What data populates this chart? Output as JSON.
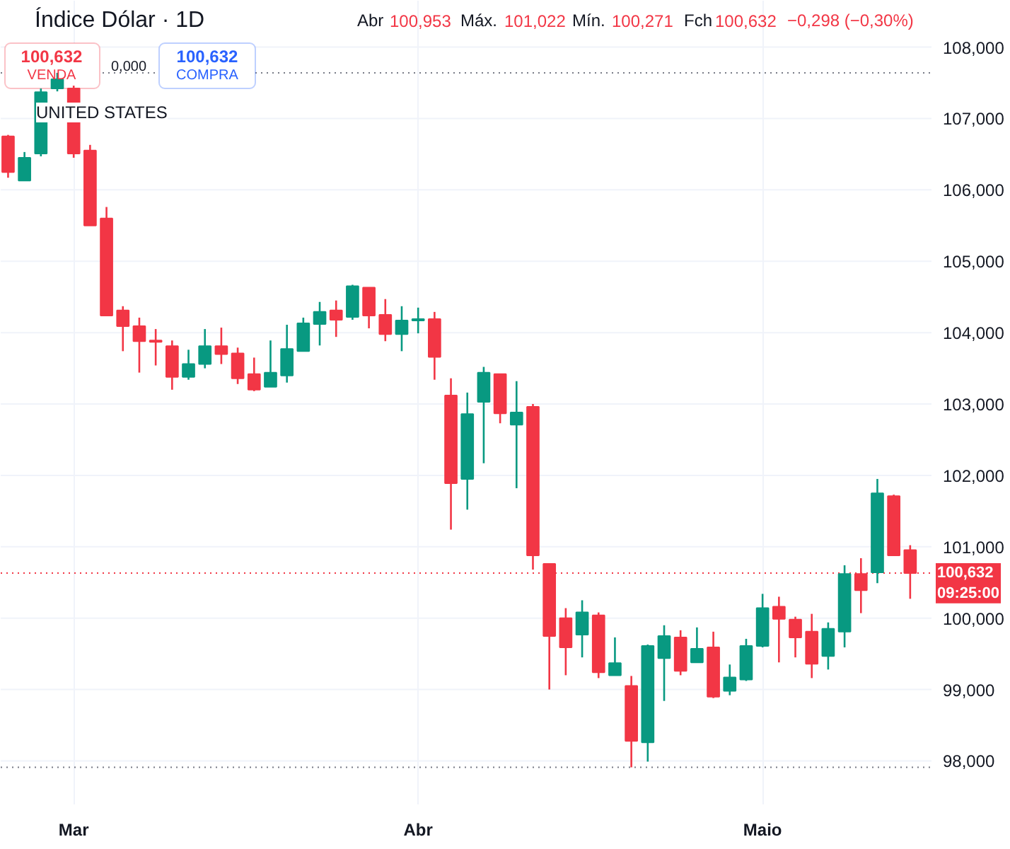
{
  "chart_data": {
    "type": "candlestick",
    "title": "Índice Dólar · 1D",
    "categories": [
      null,
      null,
      null,
      null,
      "Mar",
      null,
      null,
      null,
      null,
      null,
      null,
      null,
      null,
      null,
      null,
      null,
      null,
      null,
      null,
      null,
      null,
      null,
      null,
      null,
      null,
      "Abr",
      null,
      null,
      null,
      null,
      null,
      null,
      null,
      null,
      null,
      null,
      null,
      null,
      null,
      null,
      null,
      null,
      null,
      null,
      null,
      null,
      "Maio",
      null,
      null,
      null,
      null,
      null,
      null,
      null,
      null,
      null
    ],
    "ohlc": [
      [
        106.75,
        106.77,
        106.17,
        106.25
      ],
      [
        106.13,
        106.53,
        106.13,
        106.45
      ],
      [
        106.51,
        107.42,
        106.47,
        107.37
      ],
      [
        107.42,
        107.64,
        107.38,
        107.55
      ],
      [
        107.42,
        107.46,
        106.45,
        106.51
      ],
      [
        106.55,
        106.63,
        105.5,
        105.5
      ],
      [
        105.6,
        105.76,
        104.24,
        104.24
      ],
      [
        104.31,
        104.37,
        103.74,
        104.09
      ],
      [
        104.09,
        104.21,
        103.44,
        103.88
      ],
      [
        103.89,
        104.05,
        103.54,
        103.87
      ],
      [
        103.81,
        103.89,
        103.2,
        103.38
      ],
      [
        103.38,
        103.76,
        103.34,
        103.56
      ],
      [
        103.56,
        104.05,
        103.5,
        103.81
      ],
      [
        103.81,
        104.07,
        103.56,
        103.7
      ],
      [
        103.71,
        103.79,
        103.28,
        103.36
      ],
      [
        103.42,
        103.65,
        103.18,
        103.2
      ],
      [
        103.24,
        103.89,
        103.24,
        103.44
      ],
      [
        103.4,
        104.11,
        103.3,
        103.77
      ],
      [
        103.74,
        104.21,
        103.74,
        104.13
      ],
      [
        104.12,
        104.43,
        103.82,
        104.29
      ],
      [
        104.31,
        104.45,
        103.94,
        104.18
      ],
      [
        104.22,
        104.67,
        104.18,
        104.65
      ],
      [
        104.63,
        104.63,
        104.06,
        104.24
      ],
      [
        104.25,
        104.47,
        103.88,
        103.98
      ],
      [
        103.98,
        104.37,
        103.74,
        104.17
      ],
      [
        104.17,
        104.35,
        103.99,
        104.19
      ],
      [
        104.19,
        104.29,
        103.34,
        103.66
      ],
      [
        103.12,
        103.36,
        101.24,
        101.89
      ],
      [
        101.95,
        103.16,
        101.52,
        102.86
      ],
      [
        103.03,
        103.52,
        102.17,
        103.44
      ],
      [
        103.42,
        103.42,
        102.73,
        102.87
      ],
      [
        102.71,
        103.32,
        101.82,
        102.88
      ],
      [
        102.96,
        103.0,
        100.68,
        100.88
      ],
      [
        100.76,
        100.76,
        99.0,
        99.75
      ],
      [
        100.0,
        100.14,
        99.2,
        99.59
      ],
      [
        99.77,
        100.25,
        99.45,
        100.08
      ],
      [
        100.04,
        100.08,
        99.16,
        99.24
      ],
      [
        99.2,
        99.73,
        99.2,
        99.37
      ],
      [
        99.05,
        99.19,
        97.91,
        98.28
      ],
      [
        98.26,
        99.63,
        97.99,
        99.61
      ],
      [
        99.44,
        99.9,
        98.84,
        99.75
      ],
      [
        99.73,
        99.83,
        99.2,
        99.26
      ],
      [
        99.38,
        99.87,
        99.38,
        99.57
      ],
      [
        99.59,
        99.81,
        98.88,
        98.9
      ],
      [
        98.98,
        99.35,
        98.92,
        99.17
      ],
      [
        99.14,
        99.71,
        99.12,
        99.61
      ],
      [
        99.61,
        100.34,
        99.59,
        100.14
      ],
      [
        100.16,
        100.3,
        99.38,
        99.99
      ],
      [
        99.98,
        100.02,
        99.45,
        99.73
      ],
      [
        99.81,
        100.06,
        99.16,
        99.36
      ],
      [
        99.47,
        99.94,
        99.28,
        99.85
      ],
      [
        99.81,
        100.74,
        99.59,
        100.62
      ],
      [
        100.62,
        100.84,
        100.07,
        100.39
      ],
      [
        100.64,
        101.95,
        100.49,
        101.75
      ],
      [
        101.71,
        101.73,
        100.88,
        100.88
      ],
      [
        100.953,
        101.022,
        100.271,
        100.632
      ]
    ],
    "colors": [
      "#f23645",
      "#089981",
      "#089981",
      "#089981",
      "#f23645",
      "#f23645",
      "#f23645",
      "#f23645",
      "#f23645",
      "#f23645",
      "#f23645",
      "#089981",
      "#089981",
      "#f23645",
      "#f23645",
      "#f23645",
      "#089981",
      "#089981",
      "#089981",
      "#089981",
      "#f23645",
      "#089981",
      "#f23645",
      "#f23645",
      "#089981",
      "#089981",
      "#f23645",
      "#f23645",
      "#089981",
      "#089981",
      "#f23645",
      "#089981",
      "#f23645",
      "#f23645",
      "#f23645",
      "#089981",
      "#f23645",
      "#089981",
      "#f23645",
      "#089981",
      "#089981",
      "#f23645",
      "#089981",
      "#f23645",
      "#089981",
      "#089981",
      "#089981",
      "#f23645",
      "#f23645",
      "#f23645",
      "#089981",
      "#089981",
      "#f23645",
      "#089981",
      "#f23645",
      "#f23645"
    ],
    "ylim": [
      97.39,
      108.65
    ],
    "yticks": [
      {
        "value": 98,
        "label": "98,000"
      },
      {
        "value": 99,
        "label": "99,000"
      },
      {
        "value": 100,
        "label": "100,000"
      },
      {
        "value": 101,
        "label": "101,000"
      },
      {
        "value": 102,
        "label": "102,000"
      },
      {
        "value": 103,
        "label": "103,000"
      },
      {
        "value": 104,
        "label": "104,000"
      },
      {
        "value": 105,
        "label": "105,000"
      },
      {
        "value": 106,
        "label": "106,000"
      },
      {
        "value": 107,
        "label": "107,000"
      },
      {
        "value": 108,
        "label": "108,000"
      }
    ],
    "grid": true,
    "ref_lines": [
      {
        "axis": "y",
        "value": 100.632,
        "label": "100,632\n09:25:00",
        "color": "#f23645",
        "line_style": "dotted"
      },
      {
        "axis": "y",
        "value": 107.64,
        "color": "#787b86",
        "line_style": "dotted"
      },
      {
        "axis": "y",
        "value": 97.91,
        "color": "#787b86",
        "line_style": "dotted"
      }
    ],
    "annotations": [
      "Abr",
      "100,953",
      "Máx.",
      "101,022",
      "Mín.",
      "100,271",
      "Fch",
      "100,632",
      "−0,298 (−0,30%)",
      "100,632",
      "VENDA",
      "0,000",
      "100,632",
      "COMPRA",
      "UNITED STATES"
    ]
  }
}
